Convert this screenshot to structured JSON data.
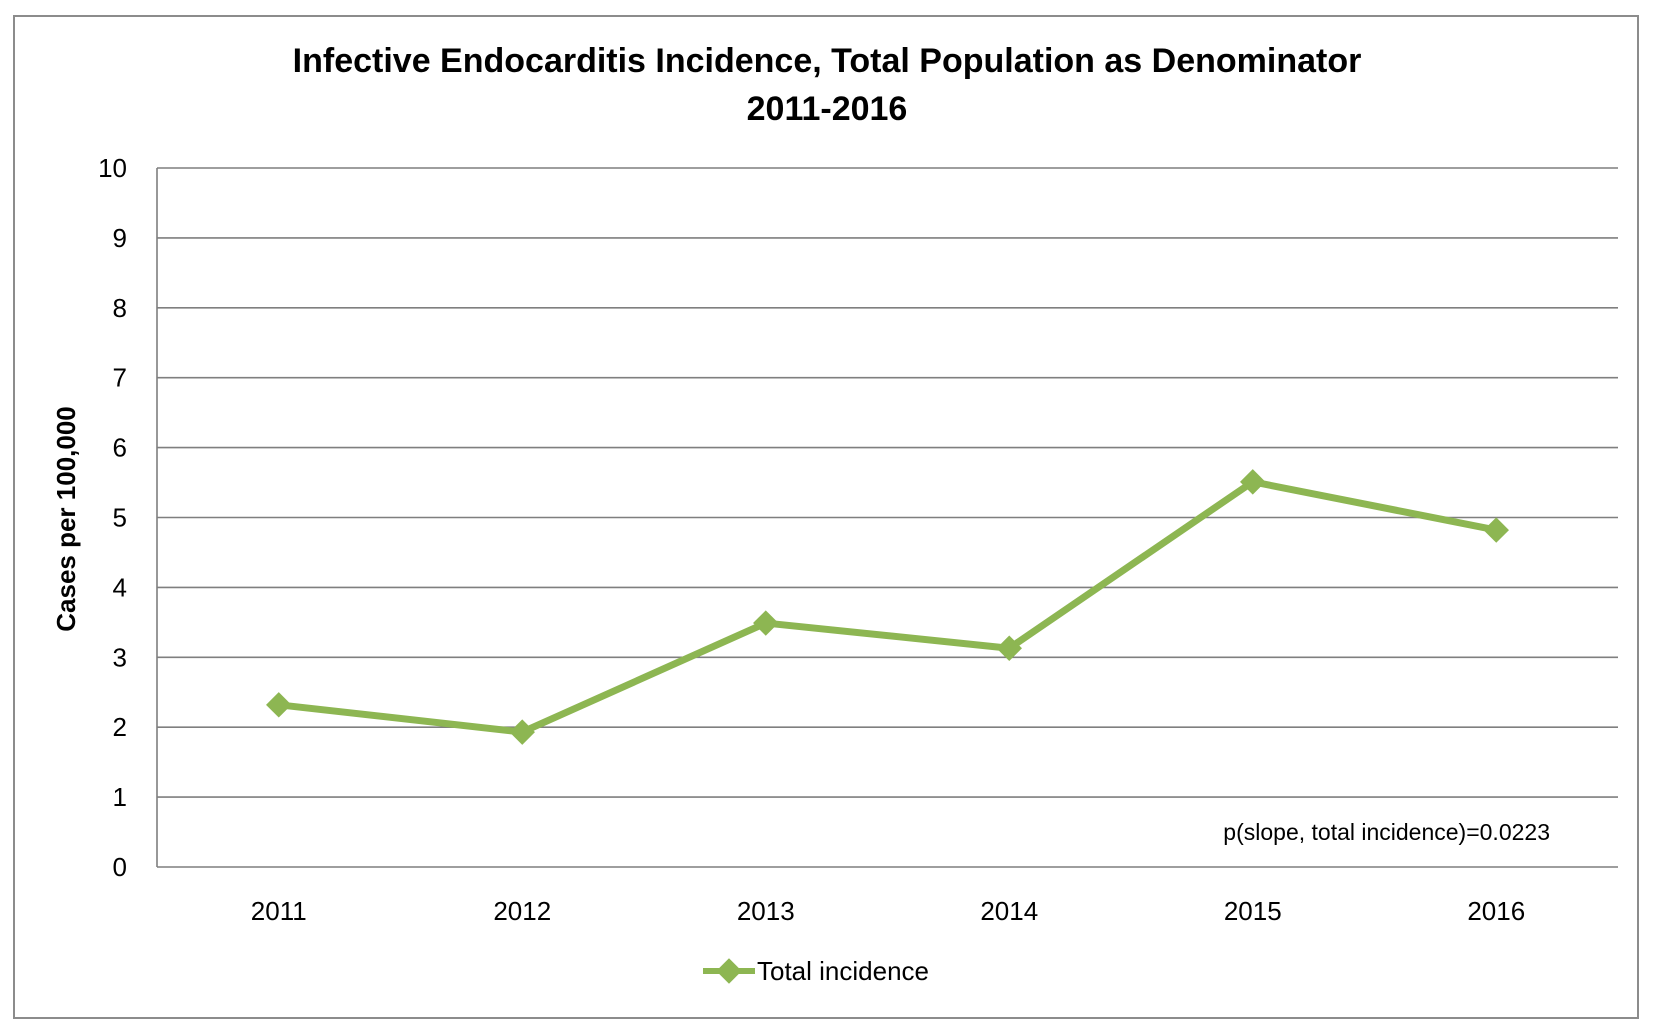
{
  "chart_data": {
    "type": "line",
    "title_line1": "Infective Endocarditis Incidence, Total Population as Denominator",
    "title_line2": "2011-2016",
    "xlabel": "",
    "ylabel": "Cases per 100,000",
    "ylim": [
      0,
      10
    ],
    "yticks": [
      "0",
      "1",
      "2",
      "3",
      "4",
      "5",
      "6",
      "7",
      "8",
      "9",
      "10"
    ],
    "categories": [
      "2011",
      "2012",
      "2013",
      "2014",
      "2015",
      "2016"
    ],
    "series": [
      {
        "name": "Total incidence",
        "values": [
          2.32,
          1.93,
          3.49,
          3.13,
          5.51,
          4.82
        ]
      }
    ],
    "series_color": "#8db652",
    "annotation": "p(slope, total incidence)=0.0223",
    "legend_label": "Total incidence",
    "legend_position": "bottom-center",
    "grid": true
  }
}
